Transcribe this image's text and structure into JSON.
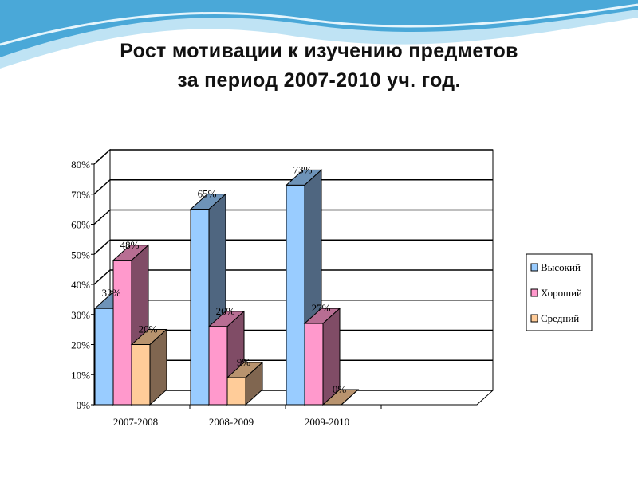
{
  "slide": {
    "title_line1": "Рост мотивации к изучению предметов",
    "title_line2": "за период 2007-2010 уч. год."
  },
  "colors": {
    "wave_top": "#4aa8d8",
    "wave_light": "#bfe3f4",
    "series": [
      "#99ccff",
      "#ff99cc",
      "#ffcc99"
    ],
    "series_side": [
      "#4f6680",
      "#804c66",
      "#806650"
    ]
  },
  "chart_data": {
    "type": "bar",
    "style": "3d-clustered-column",
    "categories": [
      "2007-2008",
      "2008-2009",
      "2009-2010"
    ],
    "series": [
      {
        "name": "Высокий",
        "values": [
          32,
          65,
          73
        ]
      },
      {
        "name": "Хороший",
        "values": [
          48,
          26,
          27
        ]
      },
      {
        "name": "Средний",
        "values": [
          20,
          9,
          0
        ]
      }
    ],
    "ylim": [
      0,
      80
    ],
    "yticks": [
      0,
      10,
      20,
      30,
      40,
      50,
      60,
      70,
      80
    ],
    "ytick_labels": [
      "0%",
      "10%",
      "20%",
      "30%",
      "40%",
      "50%",
      "60%",
      "70%",
      "80%"
    ],
    "data_labels": [
      [
        "32%",
        "65%",
        "73%"
      ],
      [
        "48%",
        "26%",
        "27%"
      ],
      [
        "20%",
        "9%",
        "0%"
      ]
    ],
    "legend": [
      "Высокий",
      "Хороший",
      "Средний"
    ],
    "legend_position": "right",
    "grid": true
  }
}
